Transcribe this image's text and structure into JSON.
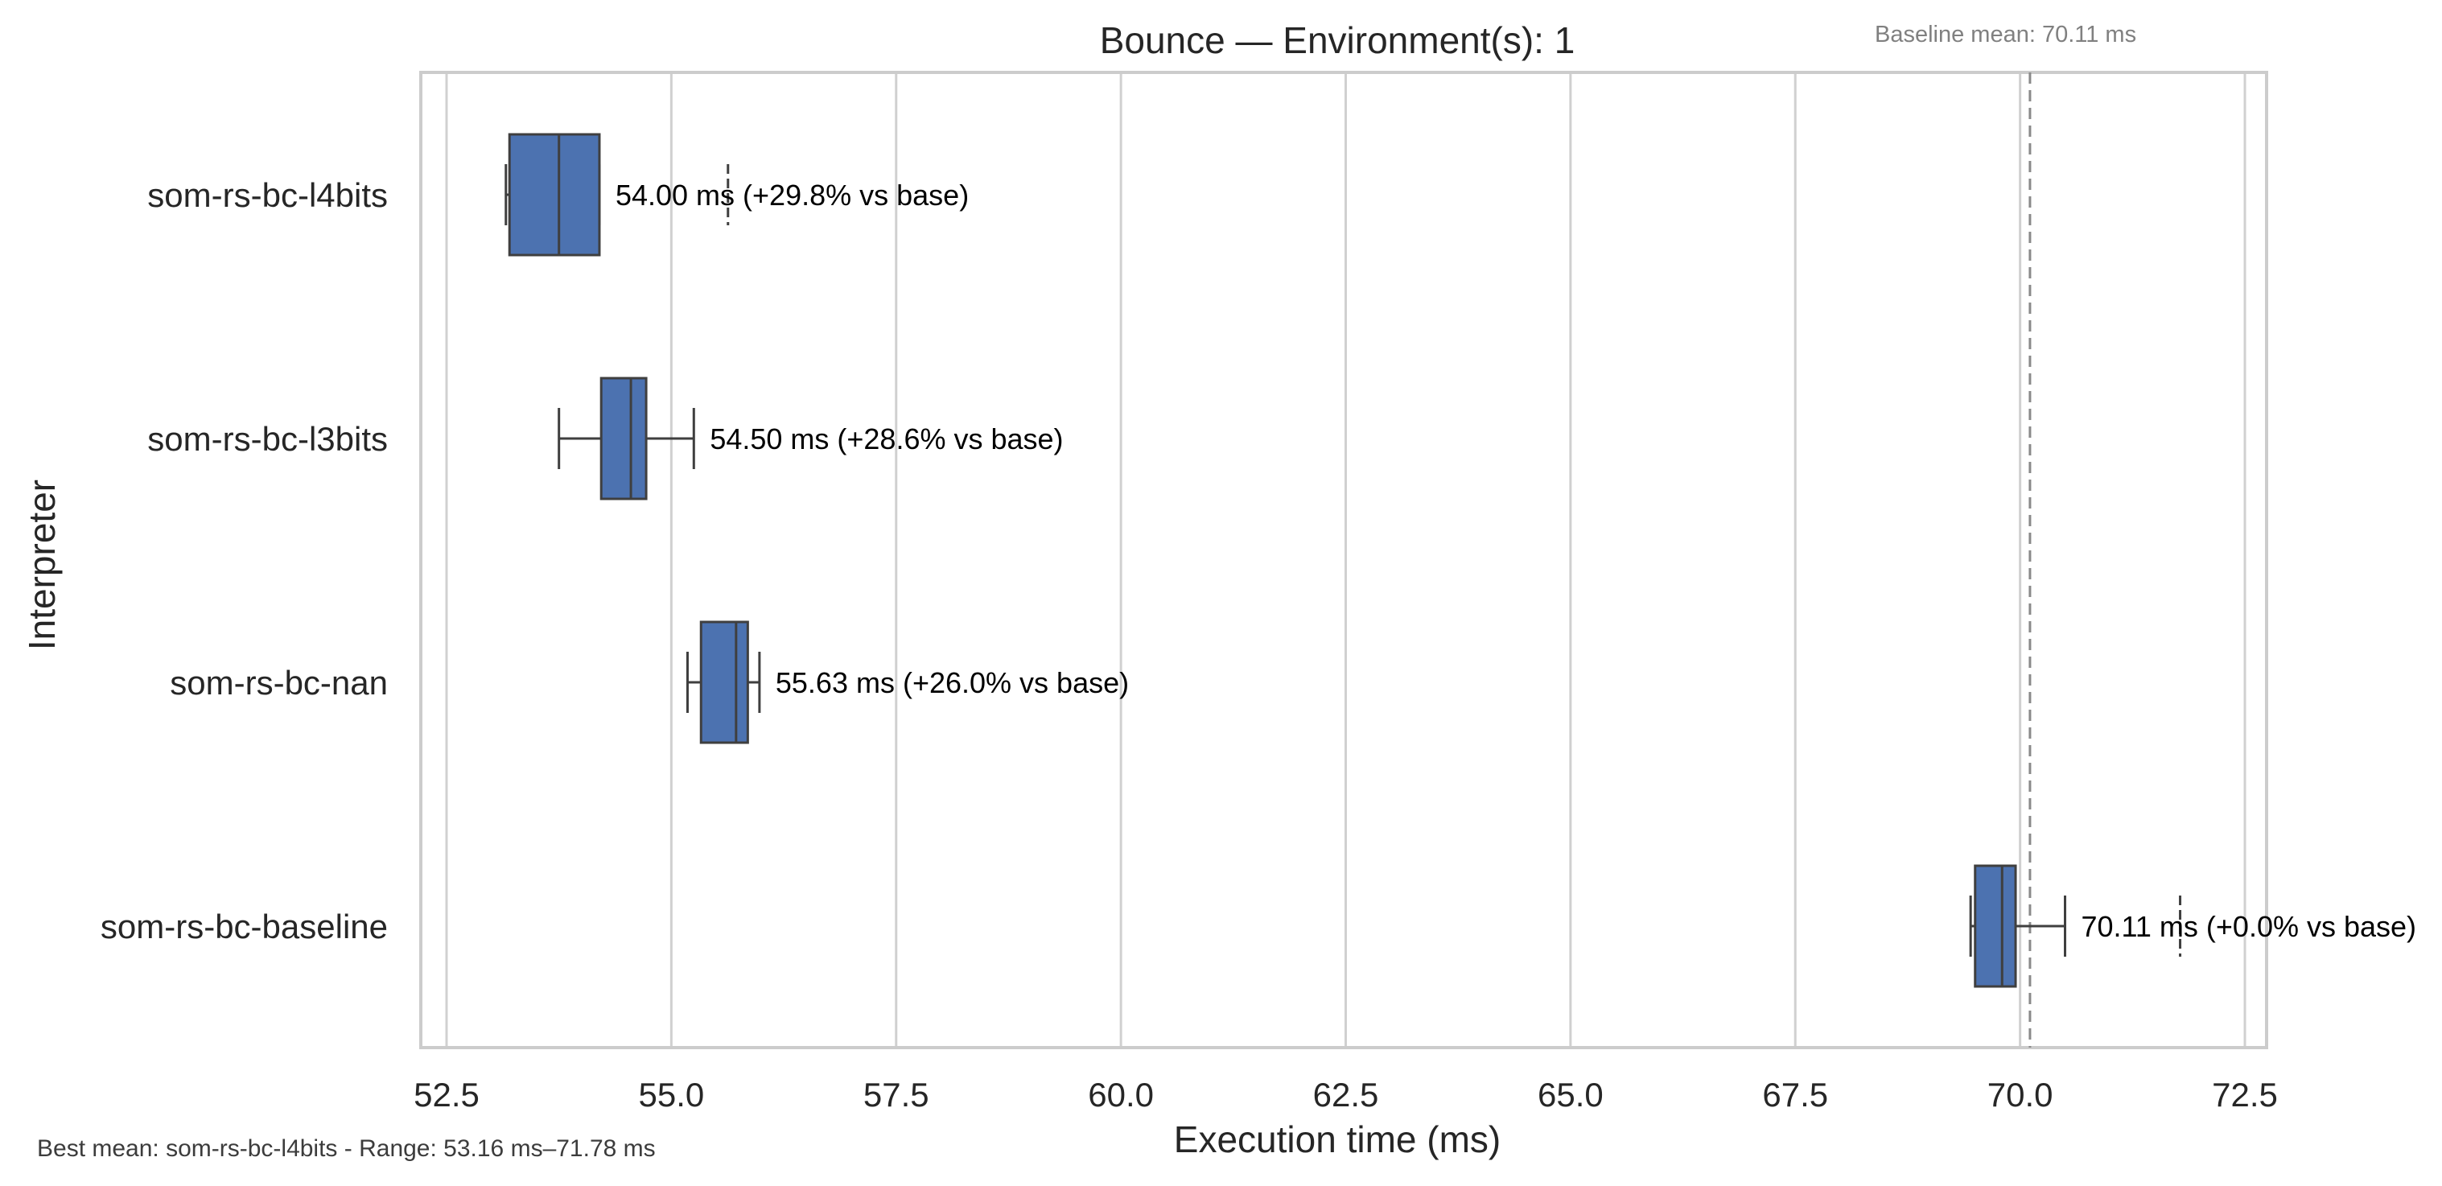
{
  "colors": {
    "box_fill": "#4c72b0",
    "box_edge": "#3f3f3f",
    "grid": "#d0d0d0",
    "frame": "#cccccc",
    "baseline_line": "#8a8a8a",
    "text": "#262626",
    "note": "#808080"
  },
  "baseline_note": "Baseline mean: 70.11 ms",
  "footer": "Best mean: som-rs-bc-l4bits - Range: 53.16 ms–71.78 ms",
  "chart_data": {
    "type": "box",
    "orientation": "horizontal",
    "title": "Bounce — Environment(s): 1",
    "xlabel": "Execution time (ms)",
    "ylabel": "Interpreter",
    "xlim": [
      52.2,
      72.7
    ],
    "xticks": [
      "52.5",
      "55.0",
      "57.5",
      "60.0",
      "62.5",
      "65.0",
      "67.5",
      "70.0",
      "72.5"
    ],
    "xtick_values": [
      52.5,
      55.0,
      57.5,
      60.0,
      62.5,
      65.0,
      67.5,
      70.0,
      72.5
    ],
    "grid": "vertical",
    "baseline_mean": 70.11,
    "categories": [
      "som-rs-bc-l4bits",
      "som-rs-bc-l3bits",
      "som-rs-bc-nan",
      "som-rs-bc-baseline"
    ],
    "boxes": [
      {
        "name": "som-rs-bc-l4bits",
        "whisker_low": 53.16,
        "q1": 53.2,
        "median": 53.75,
        "q3": 54.2,
        "whisker_high": 54.2,
        "outliers": [
          55.63
        ],
        "label": "54.00 ms  (+29.8% vs base)"
      },
      {
        "name": "som-rs-bc-l3bits",
        "whisker_low": 53.75,
        "q1": 54.22,
        "median": 54.55,
        "q3": 54.72,
        "whisker_high": 55.25,
        "outliers": [],
        "label": "54.50 ms  (+28.6% vs base)"
      },
      {
        "name": "som-rs-bc-nan",
        "whisker_low": 55.18,
        "q1": 55.33,
        "median": 55.72,
        "q3": 55.85,
        "whisker_high": 55.98,
        "outliers": [],
        "label": "55.63 ms  (+26.0% vs base)"
      },
      {
        "name": "som-rs-bc-baseline",
        "whisker_low": 69.45,
        "q1": 69.5,
        "median": 69.8,
        "q3": 69.95,
        "whisker_high": 70.5,
        "outliers": [
          71.78
        ],
        "label": "70.11 ms  (+0.0% vs base)"
      }
    ]
  }
}
